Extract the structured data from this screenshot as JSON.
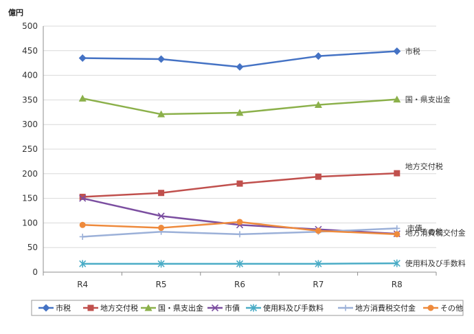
{
  "chart_data": {
    "type": "line",
    "title": "",
    "unit_label": "億円",
    "xlabel": "",
    "ylabel": "",
    "ylim": [
      0,
      500
    ],
    "y_ticks": [
      0,
      50,
      100,
      150,
      200,
      250,
      300,
      350,
      400,
      450,
      500
    ],
    "categories": [
      "R4",
      "R5",
      "R6",
      "R7",
      "R8"
    ],
    "grid": "horizontal",
    "legend_position": "bottom",
    "series": [
      {
        "name": "市税",
        "color": "#4472c4",
        "marker": "diamond",
        "values": [
          435,
          433,
          417,
          439,
          449
        ]
      },
      {
        "name": "地方交付税",
        "color": "#c0504d",
        "marker": "square",
        "values": [
          153,
          161,
          180,
          194,
          201
        ]
      },
      {
        "name": "国・県支出金",
        "color": "#8bb04a",
        "marker": "triangle",
        "values": [
          353,
          321,
          324,
          340,
          351
        ]
      },
      {
        "name": "市債",
        "color": "#7b4ea0",
        "marker": "x",
        "values": [
          150,
          114,
          96,
          87,
          78
        ]
      },
      {
        "name": "使用料及び手数料",
        "color": "#4aacc6",
        "marker": "star",
        "values": [
          17,
          17,
          17,
          17,
          18
        ]
      },
      {
        "name": "地方消費税交付金",
        "color": "#9bb0d8",
        "marker": "plus",
        "values": [
          72,
          82,
          77,
          82,
          89
        ]
      },
      {
        "name": "その他",
        "color": "#ee8a3c",
        "marker": "circle",
        "values": [
          96,
          90,
          102,
          84,
          77
        ]
      }
    ],
    "end_labels": [
      "市税",
      "国・県支出金",
      "地方交付税",
      "市債",
      "その他",
      "地方消費税交付金",
      "使用料及び手数料"
    ]
  }
}
